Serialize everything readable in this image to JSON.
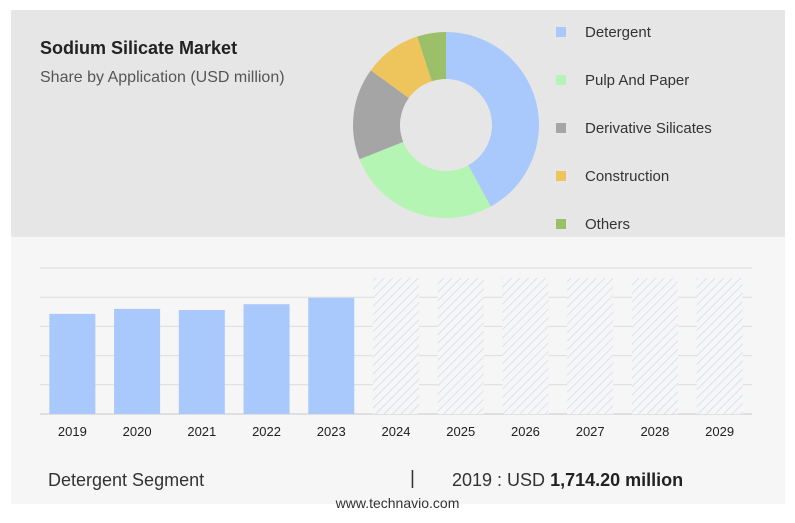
{
  "header": {
    "title": "Sodium Silicate Market",
    "subtitle": "Share by Application (USD million)"
  },
  "chart_data": [
    {
      "type": "pie",
      "subtype": "donut",
      "labels": [
        "Detergent",
        "Pulp And Paper",
        "Derivative Silicates",
        "Construction",
        "Others"
      ],
      "values": [
        42,
        27,
        16,
        10,
        5
      ],
      "colors": [
        "#a9c8fb",
        "#b4f5b4",
        "#a5a5a5",
        "#eec45c",
        "#9cc06a"
      ],
      "legend_position": "right"
    },
    {
      "type": "bar",
      "categories": [
        "2019",
        "2020",
        "2021",
        "2022",
        "2023",
        "2024",
        "2025",
        "2026",
        "2027",
        "2028",
        "2029"
      ],
      "series": [
        {
          "values": [
            1714.2,
            1800,
            1780,
            1880,
            1990,
            null,
            null,
            null,
            null,
            null,
            null
          ]
        }
      ],
      "forecast_categories": [
        "2024",
        "2025",
        "2026",
        "2027",
        "2028",
        "2029"
      ],
      "ylim": [
        0,
        2500
      ],
      "grid": true,
      "bar_color": "#a9c8fb",
      "forecast_pattern": "hatched"
    }
  ],
  "footer": {
    "segment": "Detergent Segment",
    "divider": "|",
    "value_prefix": "2019 : USD ",
    "value_amount": "1,714.20 million",
    "source": "www.technavio.com"
  }
}
